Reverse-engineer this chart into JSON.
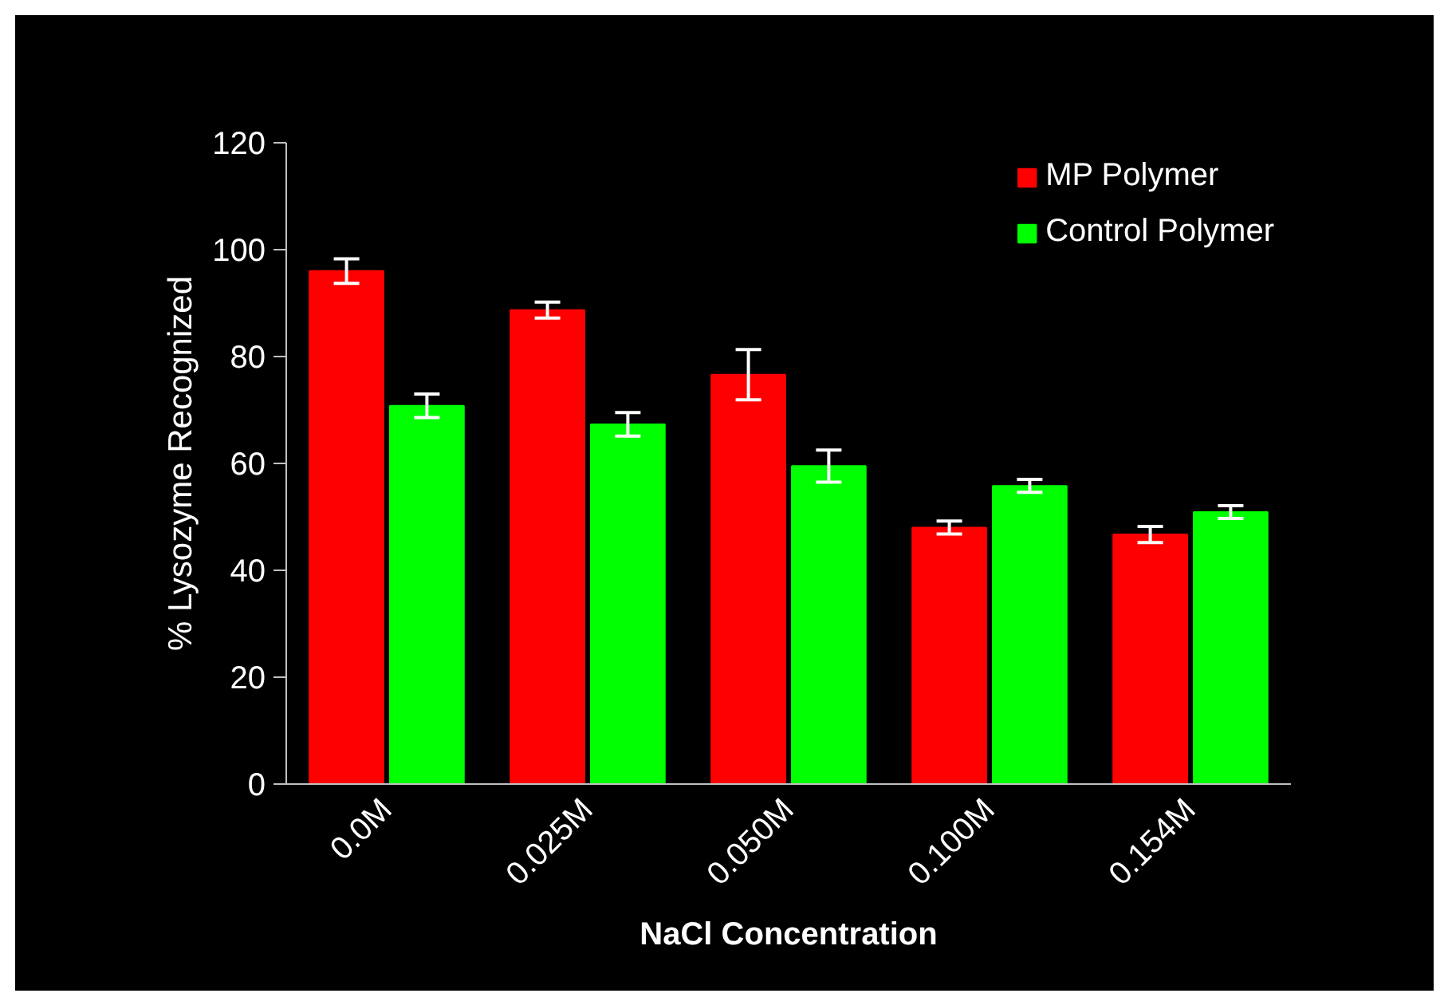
{
  "chart_data": {
    "type": "bar",
    "xlabel": "NaCl Concentration",
    "ylabel": "% Lysozyme Recognized",
    "categories": [
      "0.0M",
      "0.025M",
      "0.050M",
      "0.100M",
      "0.154M"
    ],
    "series": [
      {
        "name": "MP Polymer",
        "color": "#ff0000",
        "values": [
          96.0,
          88.7,
          76.6,
          48.0,
          46.7
        ],
        "errors": [
          2.3,
          1.5,
          4.7,
          1.2,
          1.5
        ]
      },
      {
        "name": "Control Polymer",
        "color": "#00ff00",
        "values": [
          70.8,
          67.3,
          59.5,
          55.8,
          50.9
        ],
        "errors": [
          2.2,
          2.2,
          3.0,
          1.2,
          1.2
        ]
      }
    ],
    "ylim": [
      0,
      120
    ],
    "yticks": [
      0,
      20,
      40,
      60,
      80,
      100,
      120
    ],
    "grid": false,
    "legend": "top right"
  }
}
